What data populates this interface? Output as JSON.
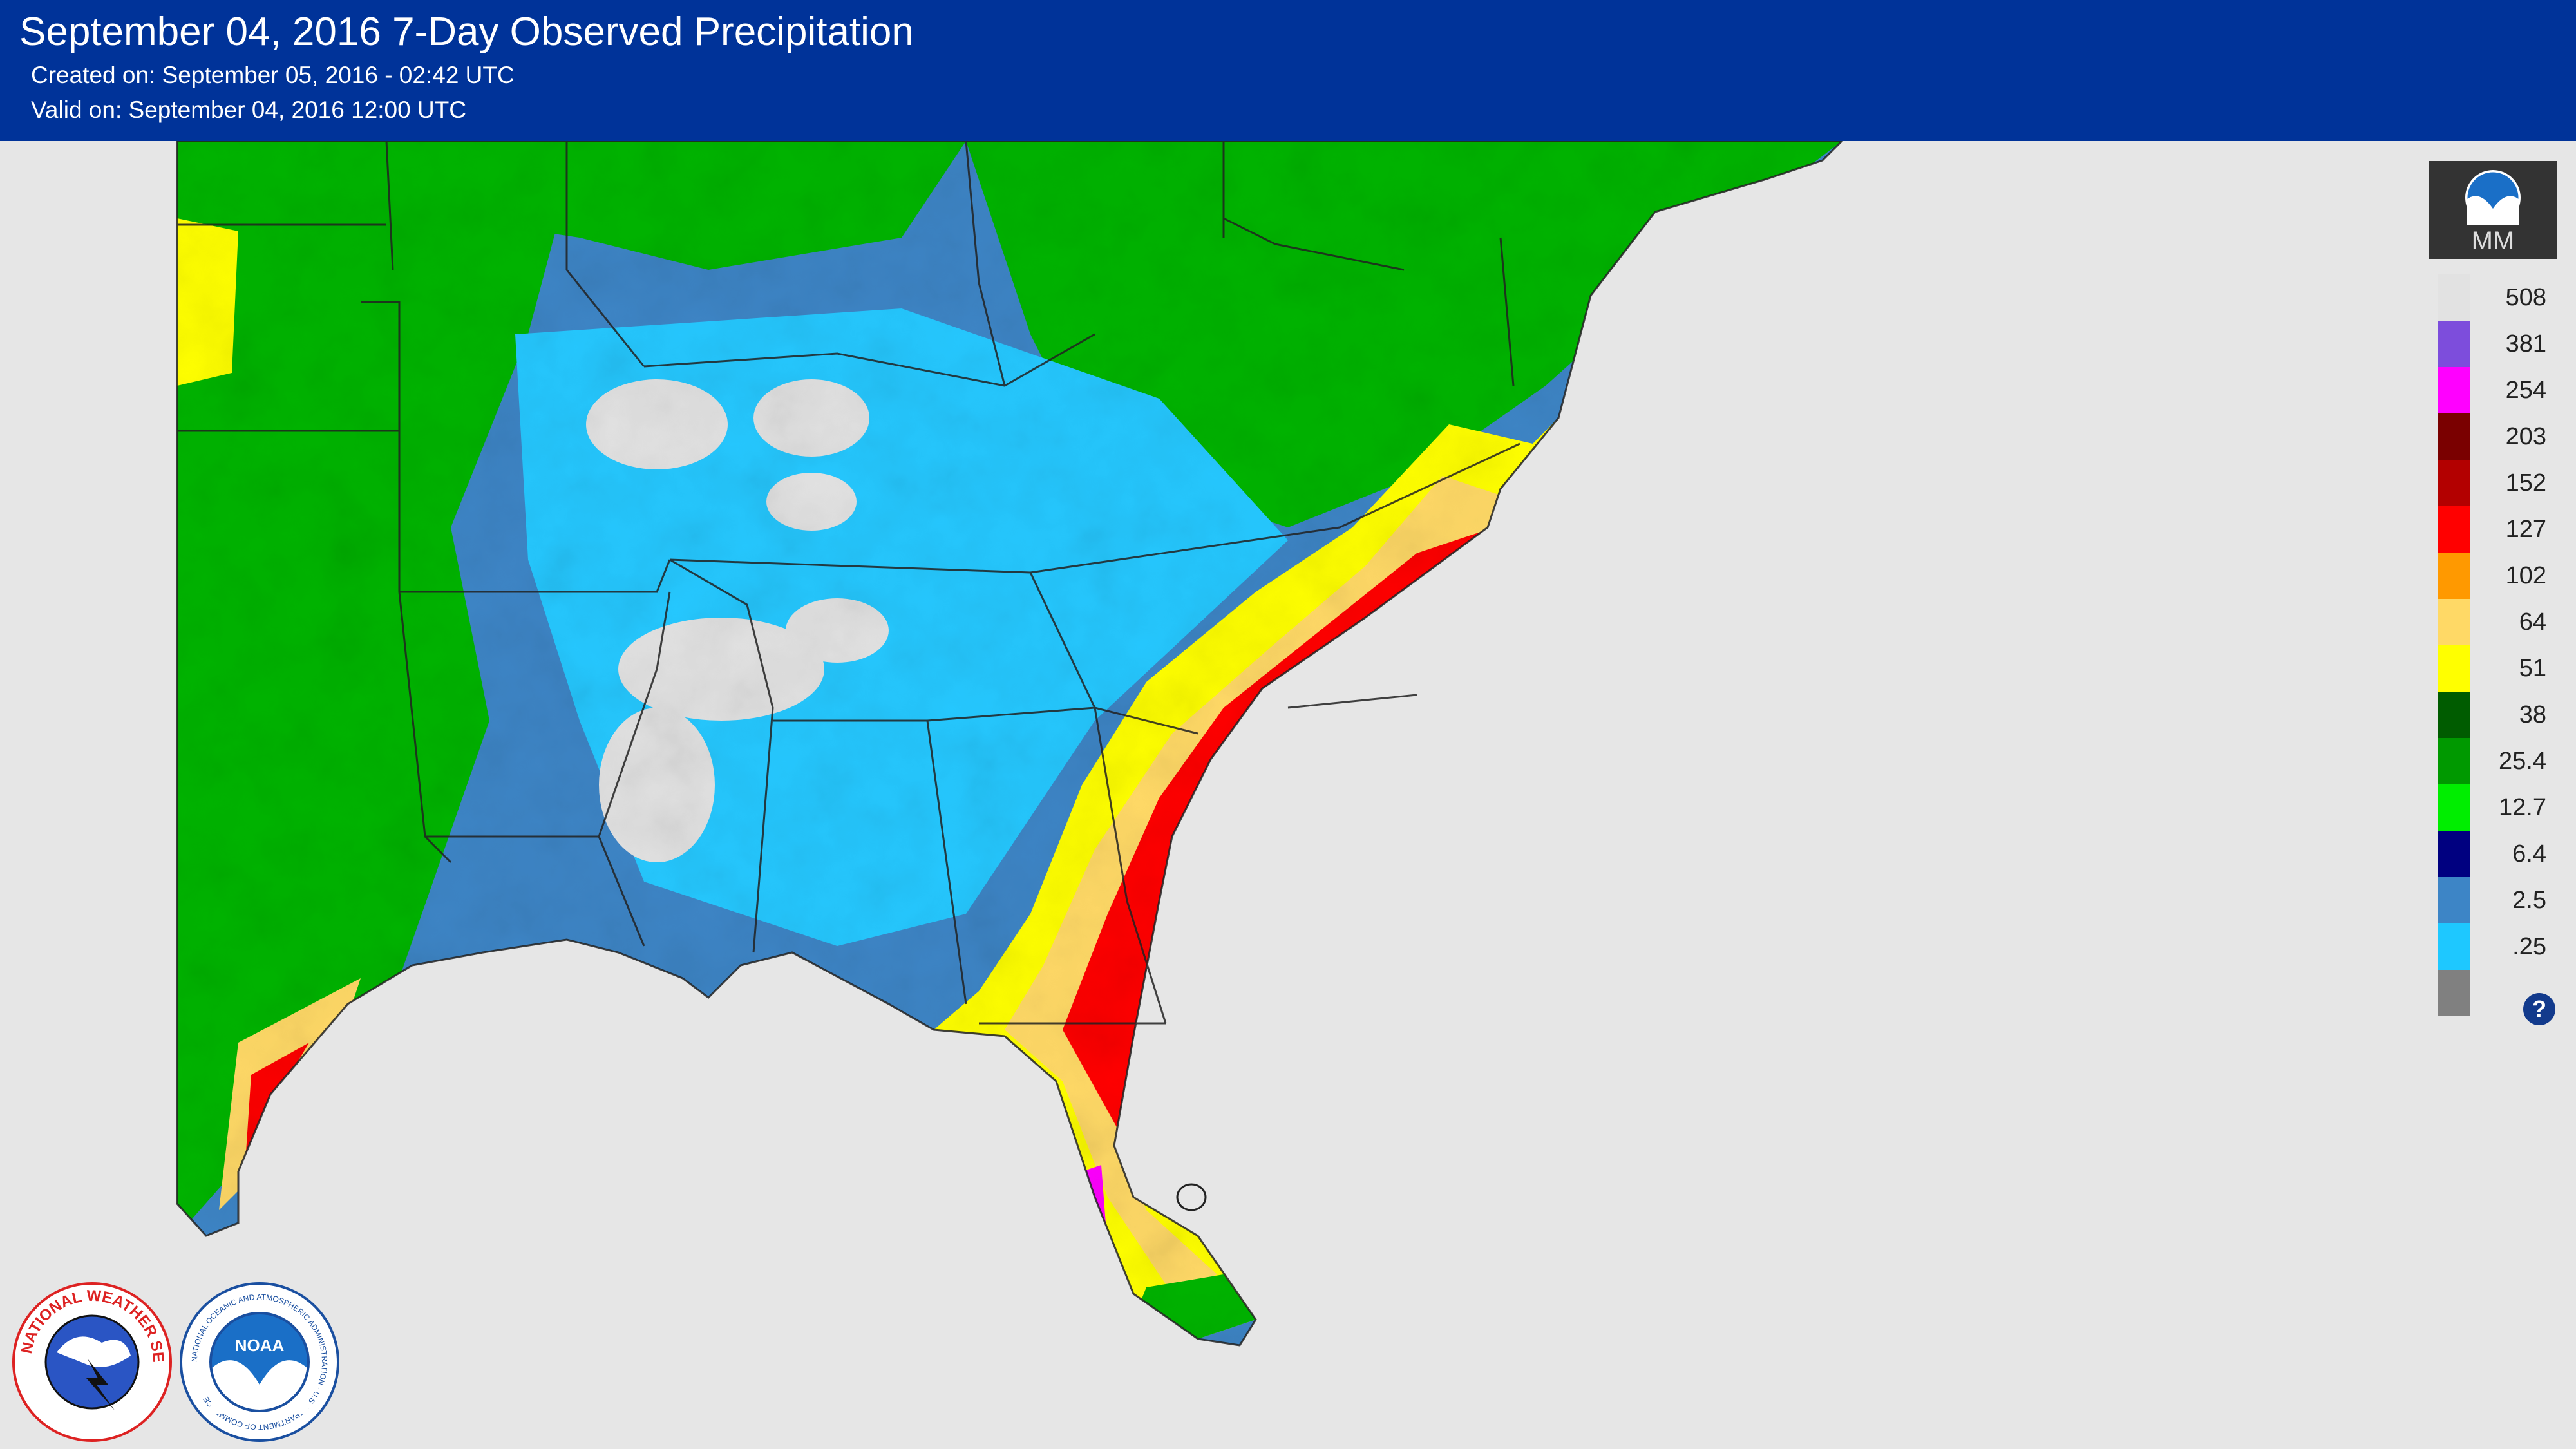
{
  "header": {
    "title": "September 04, 2016 7-Day Observed Precipitation",
    "created": "Created on: September 05, 2016 - 02:42 UTC",
    "valid": "Valid on: September 04, 2016 12:00 UTC"
  },
  "legend": {
    "unit": "MM",
    "help": "?",
    "steps": [
      {
        "label": "508",
        "color": "#e2e2e2"
      },
      {
        "label": "381",
        "color": "#7d4ddc"
      },
      {
        "label": "254",
        "color": "#ff00ff"
      },
      {
        "label": "203",
        "color": "#7a0000"
      },
      {
        "label": "152",
        "color": "#b30000"
      },
      {
        "label": "127",
        "color": "#ff0000"
      },
      {
        "label": "102",
        "color": "#ff9900"
      },
      {
        "label": "64",
        "color": "#ffd966"
      },
      {
        "label": "51",
        "color": "#ffff00"
      },
      {
        "label": "38",
        "color": "#005c00"
      },
      {
        "label": "25.4",
        "color": "#009900"
      },
      {
        "label": "12.7",
        "color": "#00ee00"
      },
      {
        "label": "6.4",
        "color": "#000080"
      },
      {
        "label": "2.5",
        "color": "#3d85c6"
      },
      {
        "label": ".25",
        "color": "#1ec8ff"
      }
    ],
    "base_color": "#808080"
  },
  "colors": {
    "header_bg": "#003399",
    "background": "#e6e6e6",
    "border": "#333333"
  },
  "logos": {
    "nws": "NATIONAL WEATHER SERVICE",
    "noaa": "NOAA",
    "noaa_ring": "NATIONAL OCEANIC AND ATMOSPHERIC ADMINISTRATION · U.S. DEPARTMENT OF COMMERCE"
  }
}
